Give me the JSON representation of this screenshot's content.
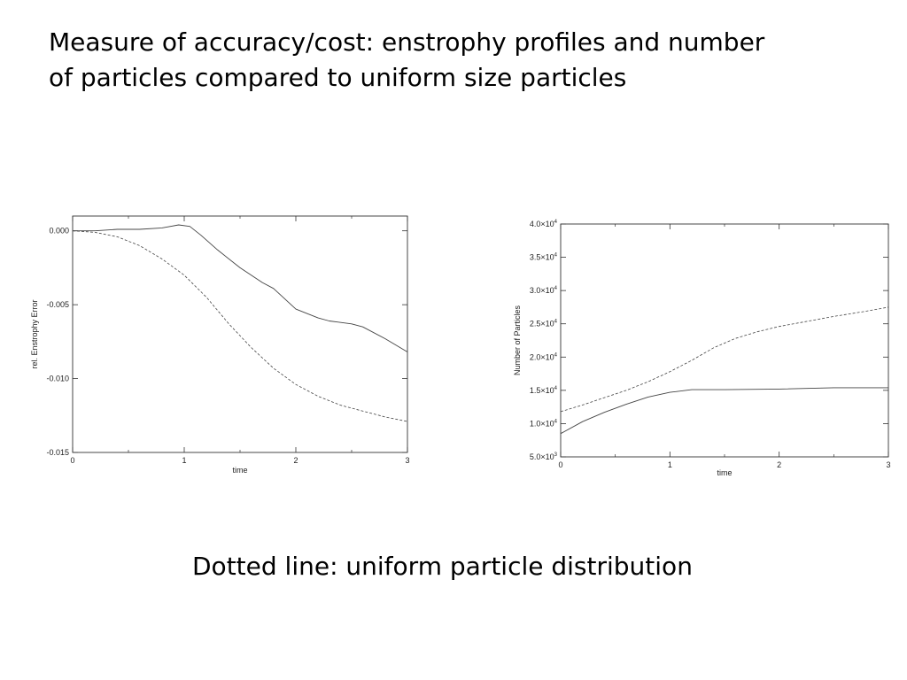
{
  "slide": {
    "title_line1": "Measure of accuracy/cost: enstrophy profiles and number",
    "title_line2": "of particles compared to uniform size particles",
    "caption": "Dotted line: uniform particle distribution"
  },
  "chart_data": [
    {
      "type": "line",
      "xlabel": "time",
      "ylabel": "rel. Enstrophy Error",
      "xlim": [
        0,
        3
      ],
      "ylim": [
        -0.015,
        0.001
      ],
      "x_ticks": [
        0,
        1,
        2,
        3
      ],
      "x_tick_labels": [
        "0",
        "1",
        "2",
        "3"
      ],
      "y_ticks": [
        0.0,
        -0.005,
        -0.01,
        -0.015
      ],
      "y_tick_labels": [
        "0.000",
        "-0.005",
        "-0.010",
        "-0.015"
      ],
      "grid": false,
      "series": [
        {
          "style": "solid",
          "x": [
            0,
            0.2,
            0.4,
            0.6,
            0.8,
            0.95,
            1.05,
            1.15,
            1.3,
            1.5,
            1.7,
            1.8,
            2.0,
            2.2,
            2.3,
            2.5,
            2.6,
            2.8,
            3.0
          ],
          "y": [
            0.0,
            0.0,
            0.0001,
            0.0001,
            0.0002,
            0.0004,
            0.0003,
            -0.0003,
            -0.0013,
            -0.0025,
            -0.0035,
            -0.0039,
            -0.0053,
            -0.0059,
            -0.0061,
            -0.0063,
            -0.0065,
            -0.0073,
            -0.0082
          ]
        },
        {
          "style": "dashed",
          "x": [
            0,
            0.2,
            0.4,
            0.6,
            0.8,
            1.0,
            1.2,
            1.4,
            1.6,
            1.8,
            2.0,
            2.2,
            2.4,
            2.6,
            2.8,
            3.0
          ],
          "y": [
            0.0,
            -0.0001,
            -0.0004,
            -0.001,
            -0.0019,
            -0.003,
            -0.0045,
            -0.0063,
            -0.0079,
            -0.0093,
            -0.0104,
            -0.0112,
            -0.0118,
            -0.0122,
            -0.0126,
            -0.0129
          ]
        }
      ]
    },
    {
      "type": "line",
      "xlabel": "time",
      "ylabel": "Number of Particles",
      "xlim": [
        0,
        3
      ],
      "ylim": [
        5000,
        40000
      ],
      "x_ticks": [
        0,
        1,
        2,
        3
      ],
      "x_tick_labels": [
        "0",
        "1",
        "2",
        "3"
      ],
      "y_ticks": [
        40000,
        35000,
        30000,
        25000,
        20000,
        15000,
        10000,
        5000
      ],
      "y_tick_labels": [
        {
          "mantissa": "4.0×10",
          "exp": "4"
        },
        {
          "mantissa": "3.5×10",
          "exp": "4"
        },
        {
          "mantissa": "3.0×10",
          "exp": "4"
        },
        {
          "mantissa": "2.5×10",
          "exp": "4"
        },
        {
          "mantissa": "2.0×10",
          "exp": "4"
        },
        {
          "mantissa": "1.5×10",
          "exp": "4"
        },
        {
          "mantissa": "1.0×10",
          "exp": "4"
        },
        {
          "mantissa": "5.0×10",
          "exp": "3"
        }
      ],
      "grid": false,
      "series": [
        {
          "style": "solid",
          "x": [
            0,
            0.2,
            0.4,
            0.6,
            0.8,
            1.0,
            1.2,
            1.5,
            2.0,
            2.5,
            3.0
          ],
          "y": [
            8500,
            10300,
            11700,
            12900,
            14000,
            14700,
            15100,
            15100,
            15200,
            15400,
            15400
          ]
        },
        {
          "style": "dashed",
          "x": [
            0,
            0.2,
            0.4,
            0.6,
            0.8,
            1.0,
            1.2,
            1.4,
            1.6,
            1.8,
            2.0,
            2.2,
            2.5,
            2.8,
            3.0
          ],
          "y": [
            11800,
            12800,
            13900,
            15000,
            16300,
            17800,
            19500,
            21400,
            22800,
            23800,
            24600,
            25200,
            26100,
            26900,
            27500
          ]
        }
      ]
    }
  ]
}
